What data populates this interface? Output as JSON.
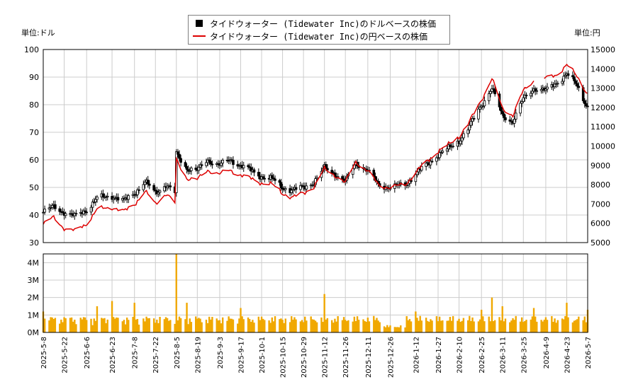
{
  "chart_data": [
    {
      "type": "candlestick+line",
      "legend": [
        {
          "label": "タイドウォーター (Tidewater Inc)のドルベースの株価",
          "color": "#000000"
        },
        {
          "label": "タイドウォーター (Tidewater Inc)の円ベースの株価",
          "color": "#dd0000"
        }
      ],
      "left_unit": "単位:ドル",
      "right_unit": "単位:円",
      "y_left": {
        "ticks": [
          30,
          40,
          50,
          60,
          70,
          80,
          90,
          100
        ],
        "ylim": [
          30,
          100
        ]
      },
      "y_right": {
        "ticks": [
          5000,
          6000,
          7000,
          8000,
          9000,
          10000,
          11000,
          12000,
          13000,
          14000,
          15000
        ],
        "ylim": [
          5000,
          15000
        ]
      },
      "grid": true,
      "x_start": "2025-05-08",
      "x_end": "2026-05-07",
      "x_tick_labels": [
        "2025-5-8",
        "2025-5-22",
        "2025-6-6",
        "2025-6-23",
        "2025-7-8",
        "2025-7-22",
        "2025-8-5",
        "2025-8-19",
        "2025-9-3",
        "2025-9-17",
        "2025-10-1",
        "2025-10-15",
        "2025-10-29",
        "2025-11-12",
        "2025-11-26",
        "2025-12-11",
        "2025-12-26",
        "2026-1-12",
        "2026-1-27",
        "2026-2-10",
        "2026-2-25",
        "2026-3-11",
        "2026-3-25",
        "2026-4-9",
        "2026-4-23",
        "2026-5-7"
      ],
      "usd_close": [
        [
          "2025-05-08",
          41
        ],
        [
          "2025-05-15",
          43
        ],
        [
          "2025-05-22",
          41
        ],
        [
          "2025-05-29",
          39.5
        ],
        [
          "2025-06-06",
          42
        ],
        [
          "2025-06-13",
          46
        ],
        [
          "2025-06-23",
          47
        ],
        [
          "2025-07-01",
          45
        ],
        [
          "2025-07-08",
          48
        ],
        [
          "2025-07-15",
          52
        ],
        [
          "2025-07-22",
          48
        ],
        [
          "2025-07-29",
          51
        ],
        [
          "2025-08-04",
          48
        ],
        [
          "2025-08-05",
          62
        ],
        [
          "2025-08-12",
          57
        ],
        [
          "2025-08-19",
          56
        ],
        [
          "2025-08-26",
          60
        ],
        [
          "2025-09-03",
          58
        ],
        [
          "2025-09-10",
          60
        ],
        [
          "2025-09-17",
          58
        ],
        [
          "2025-09-24",
          56
        ],
        [
          "2025-10-01",
          54
        ],
        [
          "2025-10-08",
          53
        ],
        [
          "2025-10-15",
          50
        ],
        [
          "2025-10-22",
          49
        ],
        [
          "2025-10-29",
          50
        ],
        [
          "2025-11-05",
          52
        ],
        [
          "2025-11-12",
          57
        ],
        [
          "2025-11-19",
          55
        ],
        [
          "2025-11-26",
          52
        ],
        [
          "2025-12-03",
          59
        ],
        [
          "2025-12-11",
          56
        ],
        [
          "2025-12-18",
          51
        ],
        [
          "2025-12-26",
          50
        ],
        [
          "2026-01-05",
          51
        ],
        [
          "2026-01-12",
          55
        ],
        [
          "2026-01-19",
          58
        ],
        [
          "2026-01-27",
          62
        ],
        [
          "2026-02-03",
          64
        ],
        [
          "2026-02-10",
          67
        ],
        [
          "2026-02-17",
          72
        ],
        [
          "2026-02-25",
          80
        ],
        [
          "2026-03-04",
          86
        ],
        [
          "2026-03-11",
          76
        ],
        [
          "2026-03-18",
          74
        ],
        [
          "2026-03-25",
          82
        ],
        [
          "2026-04-01",
          86
        ],
        [
          "2026-04-09",
          85
        ],
        [
          "2026-04-16",
          88
        ],
        [
          "2026-04-23",
          91
        ],
        [
          "2026-04-30",
          87
        ],
        [
          "2026-05-07",
          79
        ]
      ],
      "jpy_close": [
        [
          "2025-05-08",
          5950
        ],
        [
          "2025-05-15",
          6300
        ],
        [
          "2025-05-22",
          5750
        ],
        [
          "2025-05-29",
          5600
        ],
        [
          "2025-06-06",
          6000
        ],
        [
          "2025-06-13",
          6700
        ],
        [
          "2025-06-23",
          6850
        ],
        [
          "2025-07-01",
          6600
        ],
        [
          "2025-07-08",
          7000
        ],
        [
          "2025-07-15",
          7650
        ],
        [
          "2025-07-22",
          7000
        ],
        [
          "2025-07-29",
          7550
        ],
        [
          "2025-08-04",
          7050
        ],
        [
          "2025-08-05",
          9250
        ],
        [
          "2025-08-12",
          8350
        ],
        [
          "2025-08-19",
          8250
        ],
        [
          "2025-08-26",
          8750
        ],
        [
          "2025-09-03",
          8550
        ],
        [
          "2025-09-10",
          8750
        ],
        [
          "2025-09-17",
          8500
        ],
        [
          "2025-09-24",
          8300
        ],
        [
          "2025-10-01",
          8100
        ],
        [
          "2025-10-08",
          8000
        ],
        [
          "2025-10-15",
          7550
        ],
        [
          "2025-10-22",
          7350
        ],
        [
          "2025-10-29",
          7550
        ],
        [
          "2025-11-05",
          7900
        ],
        [
          "2025-11-12",
          8800
        ],
        [
          "2025-11-19",
          8500
        ],
        [
          "2025-11-26",
          8100
        ],
        [
          "2025-12-03",
          9200
        ],
        [
          "2025-12-11",
          8700
        ],
        [
          "2025-12-18",
          8000
        ],
        [
          "2025-12-26",
          7850
        ],
        [
          "2026-01-05",
          8000
        ],
        [
          "2026-01-12",
          8650
        ],
        [
          "2026-01-19",
          9150
        ],
        [
          "2026-01-27",
          9750
        ],
        [
          "2026-02-03",
          10050
        ],
        [
          "2026-02-10",
          10500
        ],
        [
          "2026-02-17",
          11250
        ],
        [
          "2026-02-25",
          12400
        ],
        [
          "2026-03-04",
          13500
        ],
        [
          "2026-03-11",
          11950
        ],
        [
          "2026-03-18",
          11600
        ],
        [
          "2026-03-25",
          12850
        ],
        [
          "2026-04-01",
          13400
        ],
        [
          "2026-04-09",
          13500
        ],
        [
          "2026-04-16",
          13700
        ],
        [
          "2026-04-23",
          14200
        ],
        [
          "2026-04-30",
          13600
        ],
        [
          "2026-05-07",
          12700
        ]
      ]
    },
    {
      "type": "bar",
      "name": "volume",
      "color": "#f0a800",
      "y_ticks": [
        "0M",
        "1M",
        "2M",
        "3M",
        "4M"
      ],
      "ylim": [
        0,
        4500000
      ],
      "bar_count": 250,
      "values_sampled": [
        [
          "2025-05-08",
          1200000
        ],
        [
          "2025-06-13",
          1500000
        ],
        [
          "2025-06-23",
          1800000
        ],
        [
          "2025-07-08",
          1700000
        ],
        [
          "2025-08-05",
          4500000
        ],
        [
          "2025-08-12",
          1700000
        ],
        [
          "2025-09-17",
          1400000
        ],
        [
          "2025-11-12",
          2200000
        ],
        [
          "2026-01-12",
          1200000
        ],
        [
          "2026-02-25",
          1300000
        ],
        [
          "2026-03-04",
          2000000
        ],
        [
          "2026-03-11",
          1500000
        ],
        [
          "2026-04-01",
          1400000
        ],
        [
          "2026-04-23",
          1700000
        ],
        [
          "2026-05-07",
          1300000
        ]
      ],
      "typical_value": 700000
    }
  ]
}
